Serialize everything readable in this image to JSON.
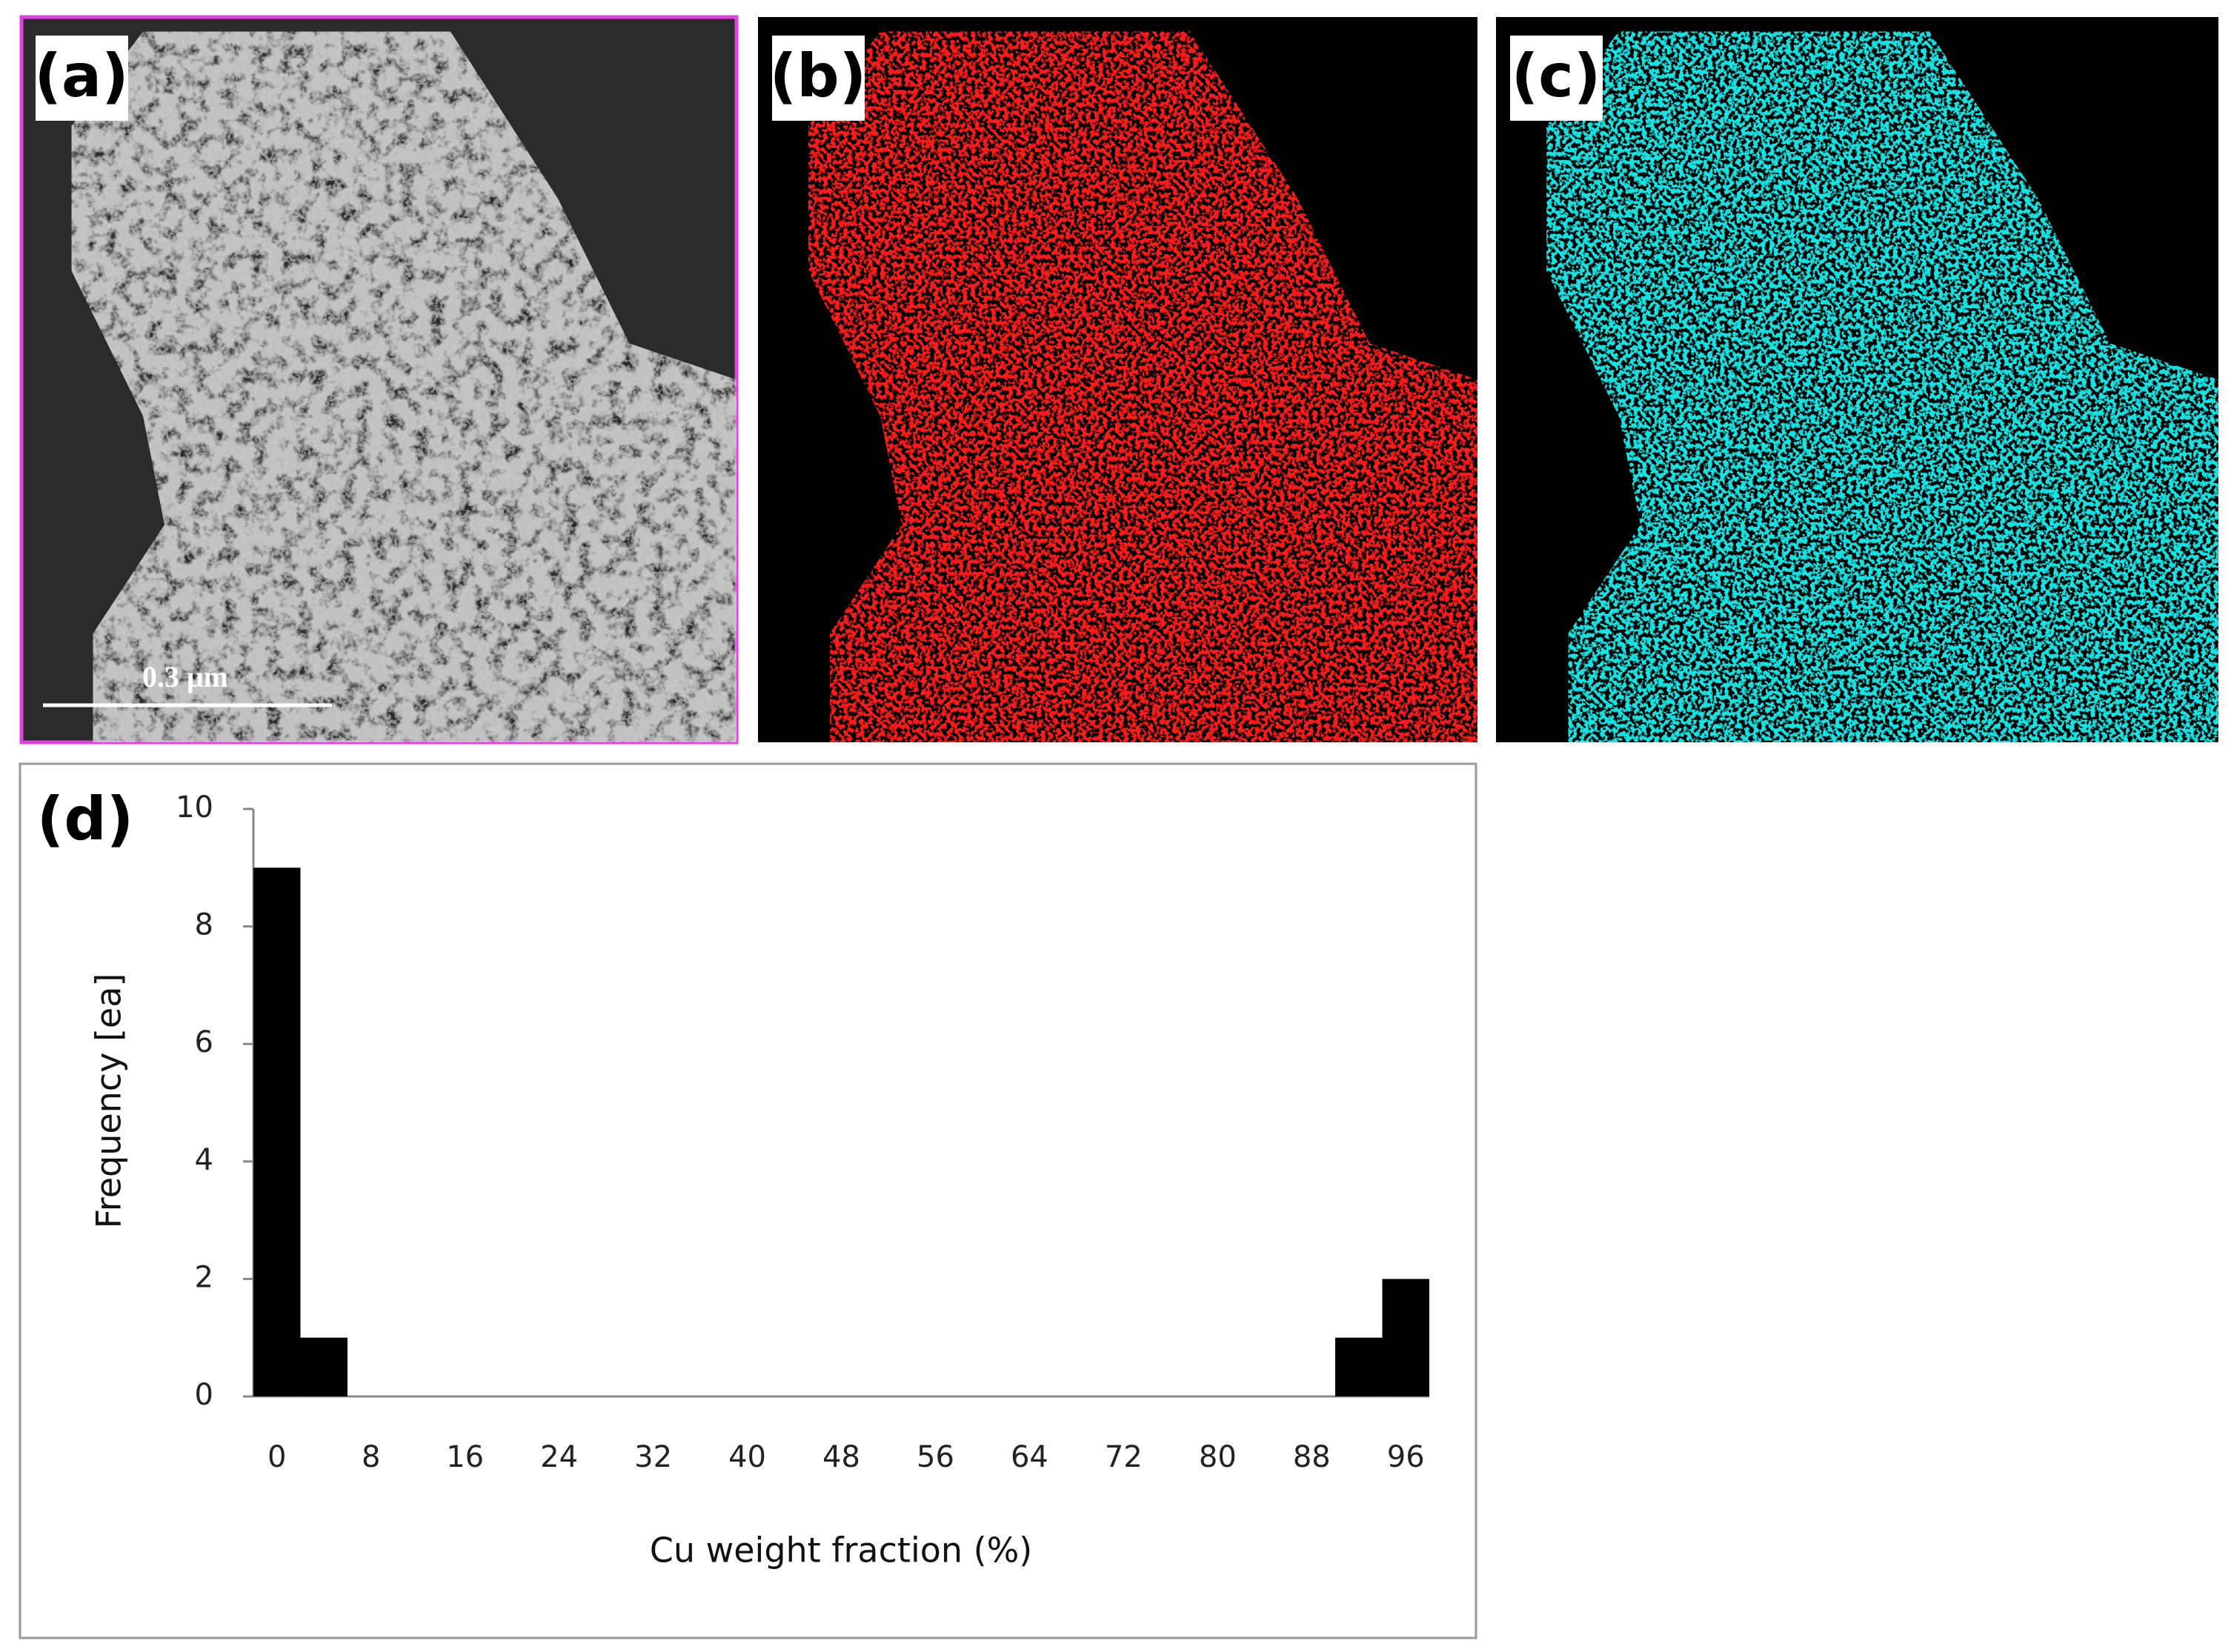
{
  "panel_labels": [
    "(a)",
    "(b)",
    "(c)"
  ],
  "scale_bar": "0.3 μm",
  "chart_data": {
    "type": "bar",
    "panel_label": "(d)",
    "x_label": "Cu weight fraction (%)",
    "y_label": "Frequency [ea]",
    "categories": [
      "0",
      null,
      "8",
      null,
      "16",
      null,
      "24",
      null,
      "32",
      null,
      "40",
      null,
      "48",
      null,
      "56",
      null,
      "64",
      null,
      "72",
      null,
      "80",
      null,
      "88",
      null,
      "96"
    ],
    "values": [
      9,
      1,
      0,
      0,
      0,
      0,
      0,
      0,
      0,
      0,
      0,
      0,
      0,
      0,
      0,
      0,
      0,
      0,
      0,
      0,
      0,
      0,
      0,
      1,
      2
    ],
    "color": "#000000",
    "ylim": [
      0,
      10
    ],
    "yticks": [
      0,
      2,
      4,
      6,
      8,
      10
    ],
    "grid": false
  }
}
